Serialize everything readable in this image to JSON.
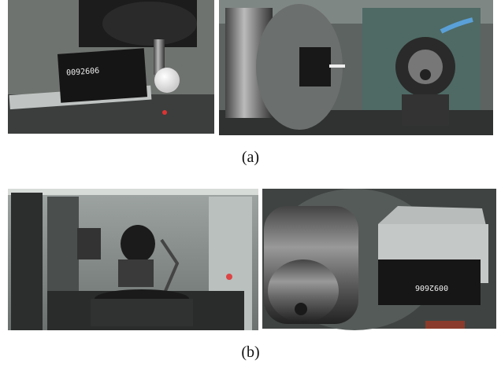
{
  "panels": [
    {
      "caption": "(a)",
      "device_label": "0092606"
    },
    {
      "caption": "(b)",
      "device_label": "0092606"
    }
  ]
}
